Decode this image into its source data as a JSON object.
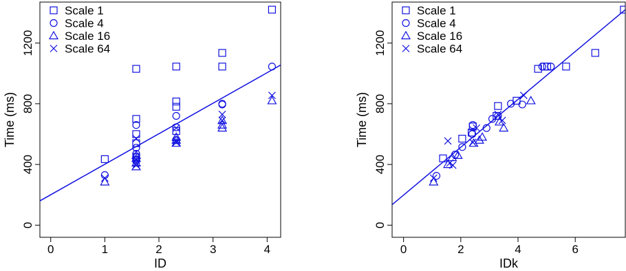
{
  "colors": {
    "series": "#1010e0",
    "axis": "#000000"
  },
  "chart_data": [
    {
      "type": "scatter",
      "xlabel": "ID",
      "ylabel": "Time (ms)",
      "xlim": [
        -0.2,
        4.25
      ],
      "ylim": [
        -80,
        1470
      ],
      "xticks": [
        0,
        1,
        2,
        3,
        4
      ],
      "yticks": [
        0,
        400,
        800,
        1200
      ],
      "legend_position": "top-left",
      "fit_line": {
        "x0": -0.2,
        "y0": 160,
        "x1": 4.25,
        "y1": 1055
      },
      "series": [
        {
          "name": "Scale 1",
          "marker": "square",
          "x": [
            1.0,
            1.58,
            1.58,
            1.58,
            1.58,
            1.58,
            2.32,
            2.32,
            2.32,
            2.32,
            3.17,
            3.17,
            4.09
          ],
          "y": [
            435,
            1030,
            700,
            600,
            540,
            450,
            1045,
            815,
            780,
            620,
            1135,
            1045,
            1420
          ]
        },
        {
          "name": "Scale 4",
          "marker": "circle",
          "x": [
            1.0,
            1.58,
            1.58,
            1.58,
            1.58,
            1.58,
            2.32,
            2.32,
            2.32,
            3.17,
            3.17,
            4.09
          ],
          "y": [
            330,
            660,
            510,
            470,
            450,
            430,
            720,
            645,
            560,
            800,
            795,
            1045
          ]
        },
        {
          "name": "Scale 16",
          "marker": "triangle",
          "x": [
            1.0,
            1.58,
            1.58,
            1.58,
            1.58,
            2.32,
            2.32,
            2.32,
            3.17,
            3.17,
            3.17,
            4.09
          ],
          "y": [
            285,
            460,
            440,
            410,
            385,
            580,
            560,
            540,
            690,
            660,
            640,
            820
          ]
        },
        {
          "name": "Scale 64",
          "marker": "x",
          "x": [
            1.0,
            1.58,
            1.58,
            1.58,
            1.58,
            2.32,
            2.32,
            2.32,
            3.17,
            3.17,
            4.09
          ],
          "y": [
            310,
            570,
            430,
            410,
            395,
            640,
            555,
            545,
            730,
            690,
            855
          ]
        }
      ]
    },
    {
      "type": "scatter",
      "xlabel": "IDk",
      "ylabel": "Time (ms)",
      "xlim": [
        -0.4,
        7.75
      ],
      "ylim": [
        -80,
        1470
      ],
      "xticks": [
        0,
        2,
        4,
        6
      ],
      "yticks": [
        0,
        400,
        800,
        1200
      ],
      "legend_position": "top-left",
      "fit_line": {
        "x0": -0.4,
        "y0": 135,
        "x1": 7.75,
        "y1": 1420
      },
      "series": [
        {
          "name": "Scale 1",
          "marker": "square",
          "x": [
            1.38,
            2.05,
            2.38,
            2.42,
            3.25,
            3.3,
            3.95,
            4.7,
            4.92,
            5.02,
            5.68,
            6.7,
            7.7
          ],
          "y": [
            440,
            570,
            610,
            650,
            720,
            785,
            820,
            1030,
            1045,
            1045,
            1045,
            1135,
            1420
          ]
        },
        {
          "name": "Scale 4",
          "marker": "circle",
          "x": [
            1.15,
            1.8,
            2.05,
            2.4,
            2.42,
            2.9,
            3.1,
            3.3,
            3.75,
            4.15,
            4.85,
            5.15
          ],
          "y": [
            325,
            465,
            515,
            600,
            660,
            640,
            700,
            720,
            800,
            795,
            1045,
            1045
          ]
        },
        {
          "name": "Scale 16",
          "marker": "triangle",
          "x": [
            1.05,
            1.55,
            1.7,
            1.9,
            2.45,
            2.65,
            2.75,
            3.35,
            3.5,
            4.45
          ],
          "y": [
            285,
            400,
            445,
            460,
            540,
            560,
            580,
            680,
            640,
            820
          ]
        },
        {
          "name": "Scale 64",
          "marker": "x",
          "x": [
            1.05,
            1.55,
            1.62,
            1.72,
            2.42,
            2.55,
            3.3,
            3.45,
            4.2
          ],
          "y": [
            310,
            555,
            410,
            395,
            545,
            640,
            730,
            690,
            855
          ]
        }
      ]
    }
  ]
}
